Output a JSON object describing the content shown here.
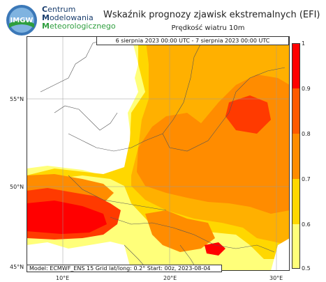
{
  "header": {
    "org_lines": [
      {
        "cap": "C",
        "rest": "entrum"
      },
      {
        "cap": "M",
        "rest": "odelowania"
      },
      {
        "cap": "M",
        "rest": "eteorologicznego"
      }
    ],
    "logo_text": "IMGW",
    "title": "Wskaźnik prognozy zjawisk ekstremalnych (EFI)",
    "subtitle": "Prędkość wiatru 10m"
  },
  "map": {
    "period": "6 sierpnia 2023 00:00 UTC - 7 sierpnia 2023 00:00 UTC",
    "footer": "Model: ECMWF_ENS 15  Grid lat/long: 0.2°  Start: 00z, 2023-08-04",
    "lat_labels": [
      "55°N",
      "50°N",
      "45°N"
    ],
    "lon_labels": [
      "10°E",
      "20°E",
      "30°E"
    ]
  },
  "colorbar": {
    "ticks": [
      "1",
      "0.9",
      "0.8",
      "0.7",
      "0.6",
      "0.5"
    ],
    "colors": {
      "c05": "#ffff7a",
      "c06": "#ffd700",
      "c07": "#ffb000",
      "c08": "#ff8c00",
      "c09": "#ff3a00",
      "c10": "#ff0000"
    }
  }
}
